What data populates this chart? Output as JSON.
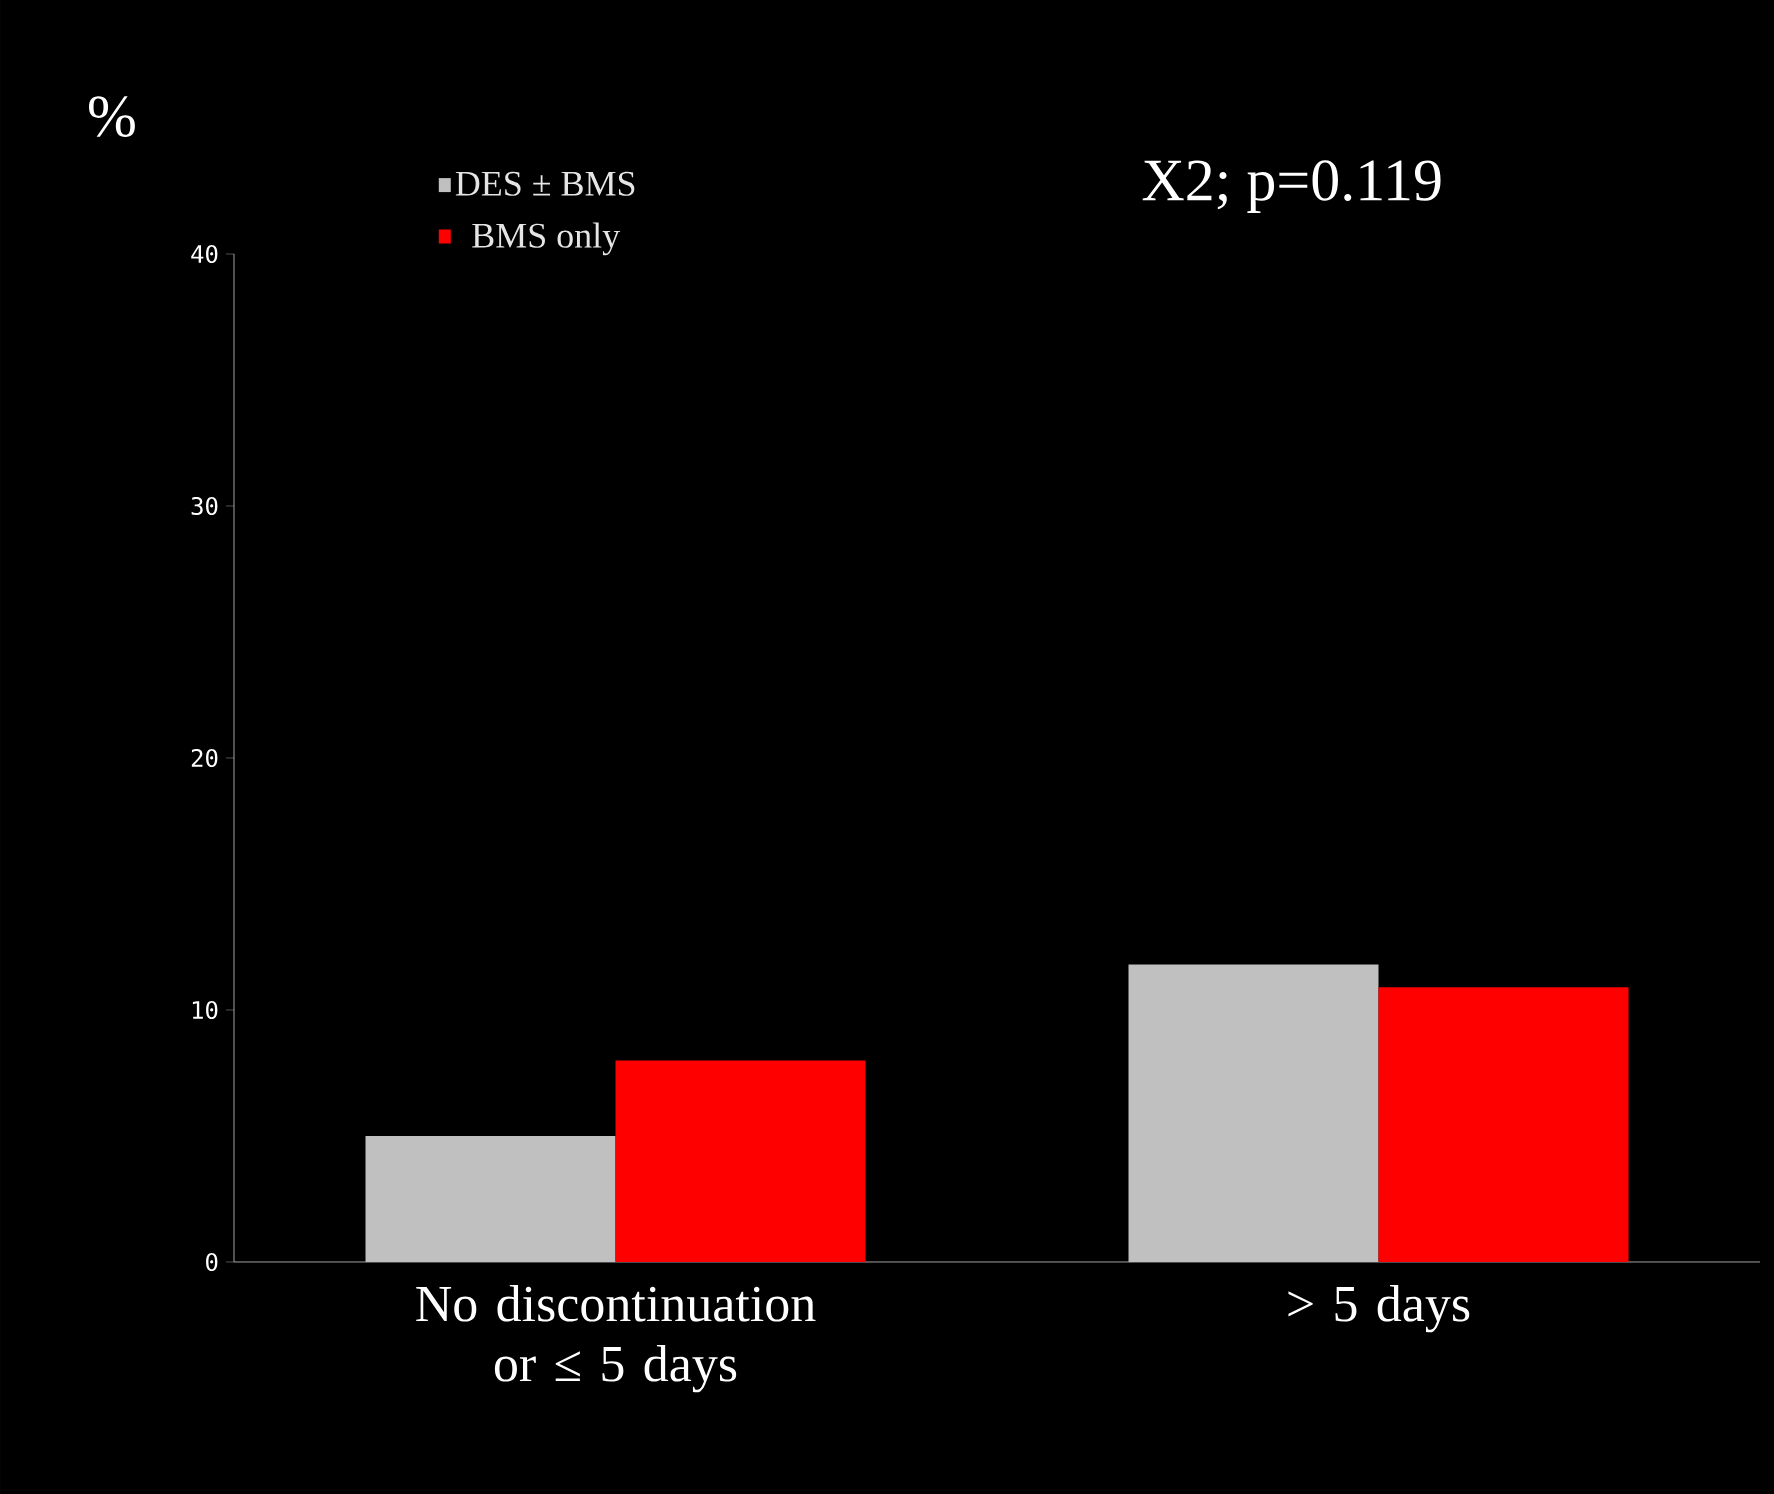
{
  "chart_data": {
    "type": "bar",
    "ylabel": "%",
    "categories": [
      "No discontinuation  or ≤ 5 days",
      "> 5 days"
    ],
    "series": [
      {
        "name": "DES ± BMS",
        "color": "#c0c0c0",
        "values": [
          5.0,
          11.8
        ]
      },
      {
        "name": "BMS only",
        "color": "#ff0000",
        "values": [
          8.0,
          10.9
        ]
      }
    ],
    "ylim": [
      0,
      40
    ],
    "yticks": [
      0,
      10,
      20,
      30,
      40
    ],
    "legend": "top left",
    "annotations": [
      "X2; p=0.119"
    ]
  }
}
